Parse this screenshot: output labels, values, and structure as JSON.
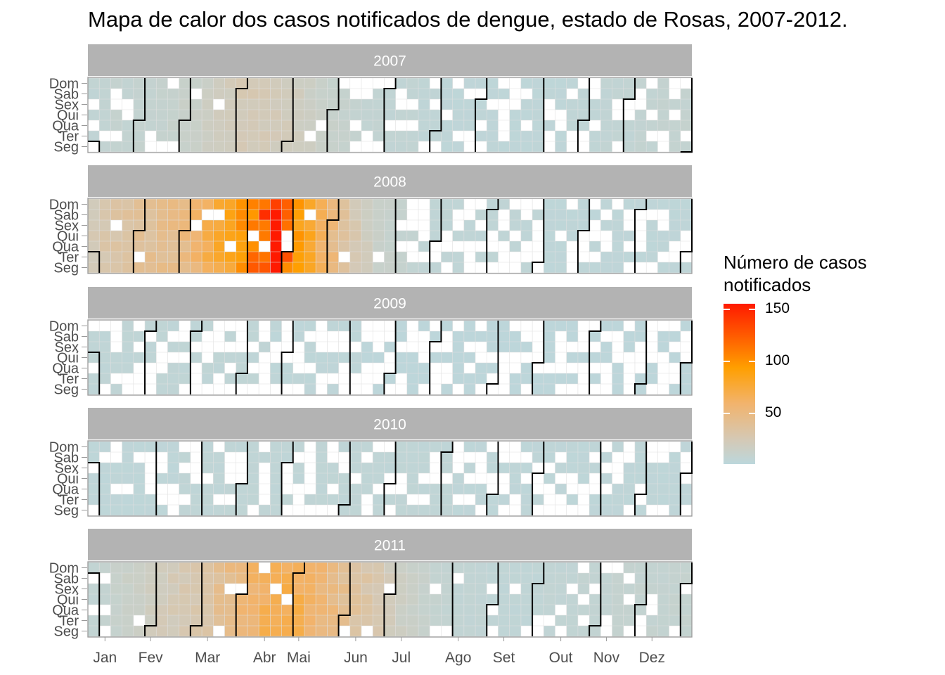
{
  "title": "Mapa de calor dos casos notificados de dengue, estado de Rosas, 2007-2012.",
  "legend": {
    "title_line1": "Número de casos",
    "title_line2": "notificados",
    "ticks": [
      "150",
      "100",
      "50"
    ],
    "tick_values": [
      150,
      100,
      50
    ],
    "range": [
      0,
      155
    ]
  },
  "colors": {
    "low": "#bcd7dc",
    "mid": "#f2b36c",
    "orange": "#ff9f00",
    "high": "#ff1a00",
    "strip": "#b3b3b3",
    "strip_text": "#ffffff",
    "grid": "#e0e0e0",
    "axis_text": "#4d4d4d"
  },
  "chart_data": {
    "type": "heatmap",
    "layout": "calendar",
    "x_unit": "week of year",
    "y_unit": "weekday",
    "weekdays": [
      "Dom",
      "Sab",
      "Sex",
      "Qui",
      "Qua",
      "Ter",
      "Seg"
    ],
    "months": [
      "Jan",
      "Fev",
      "Mar",
      "Abr",
      "Mai",
      "Jun",
      "Jul",
      "Ago",
      "Set",
      "Out",
      "Nov",
      "Dez"
    ],
    "month_tick_weeks": [
      1.5,
      5.5,
      10.5,
      15.5,
      18.5,
      23.5,
      27.5,
      32.5,
      36.5,
      41.5,
      45.5,
      49.5
    ],
    "panels": [
      {
        "year": "2007",
        "week_levels": [
          4,
          5,
          6,
          5,
          6,
          6,
          7,
          8,
          9,
          10,
          12,
          14,
          16,
          18,
          19,
          18,
          17,
          16,
          14,
          12,
          10,
          8,
          7,
          6,
          5,
          5,
          4,
          4,
          4,
          3,
          3,
          2,
          2,
          2,
          2,
          2,
          2,
          2,
          2,
          2,
          2,
          2,
          3,
          3,
          3,
          4,
          4,
          4,
          5,
          5,
          6,
          6,
          6
        ],
        "missing_fraction": 0.28
      },
      {
        "year": "2008",
        "week_levels": [
          18,
          22,
          25,
          28,
          30,
          32,
          34,
          36,
          40,
          48,
          60,
          70,
          80,
          95,
          112,
          130,
          155,
          120,
          95,
          75,
          55,
          40,
          28,
          20,
          14,
          10,
          8,
          6,
          5,
          4,
          3,
          3,
          3,
          3,
          3,
          3,
          3,
          3,
          3,
          3,
          2,
          2,
          2,
          2,
          2,
          2,
          2,
          2,
          2,
          2,
          2,
          2,
          2
        ],
        "missing_fraction": 0.42
      },
      {
        "year": "2009",
        "week_levels": [
          3,
          3,
          3,
          3,
          3,
          3,
          3,
          3,
          3,
          3,
          3,
          3,
          3,
          3,
          3,
          3,
          2,
          2,
          2,
          2,
          2,
          2,
          2,
          2,
          1,
          1,
          1,
          1,
          1,
          1,
          1,
          1,
          1,
          1,
          1,
          1,
          1,
          1,
          1,
          1,
          1,
          1,
          1,
          1,
          1,
          1,
          1,
          1,
          1,
          1,
          1,
          1,
          1
        ],
        "missing_fraction": 0.55
      },
      {
        "year": "2010",
        "week_levels": [
          2,
          2,
          2,
          2,
          2,
          2,
          2,
          2,
          3,
          3,
          3,
          3,
          3,
          3,
          3,
          3,
          3,
          3,
          3,
          3,
          3,
          3,
          3,
          3,
          3,
          3,
          3,
          3,
          3,
          3,
          3,
          3,
          2,
          2,
          2,
          2,
          2,
          2,
          2,
          2,
          2,
          2,
          2,
          2,
          2,
          2,
          2,
          2,
          2,
          2,
          2,
          2,
          2
        ],
        "missing_fraction": 0.42
      },
      {
        "year": "2011",
        "week_levels": [
          4,
          6,
          8,
          10,
          12,
          14,
          16,
          18,
          20,
          22,
          26,
          32,
          38,
          44,
          50,
          56,
          60,
          62,
          58,
          52,
          46,
          40,
          34,
          28,
          24,
          20,
          16,
          12,
          10,
          8,
          6,
          5,
          4,
          4,
          4,
          3,
          3,
          3,
          3,
          3,
          4,
          4,
          4,
          5,
          5,
          5,
          6,
          6,
          6,
          6,
          6,
          6,
          6
        ],
        "missing_fraction": 0.22
      }
    ]
  }
}
